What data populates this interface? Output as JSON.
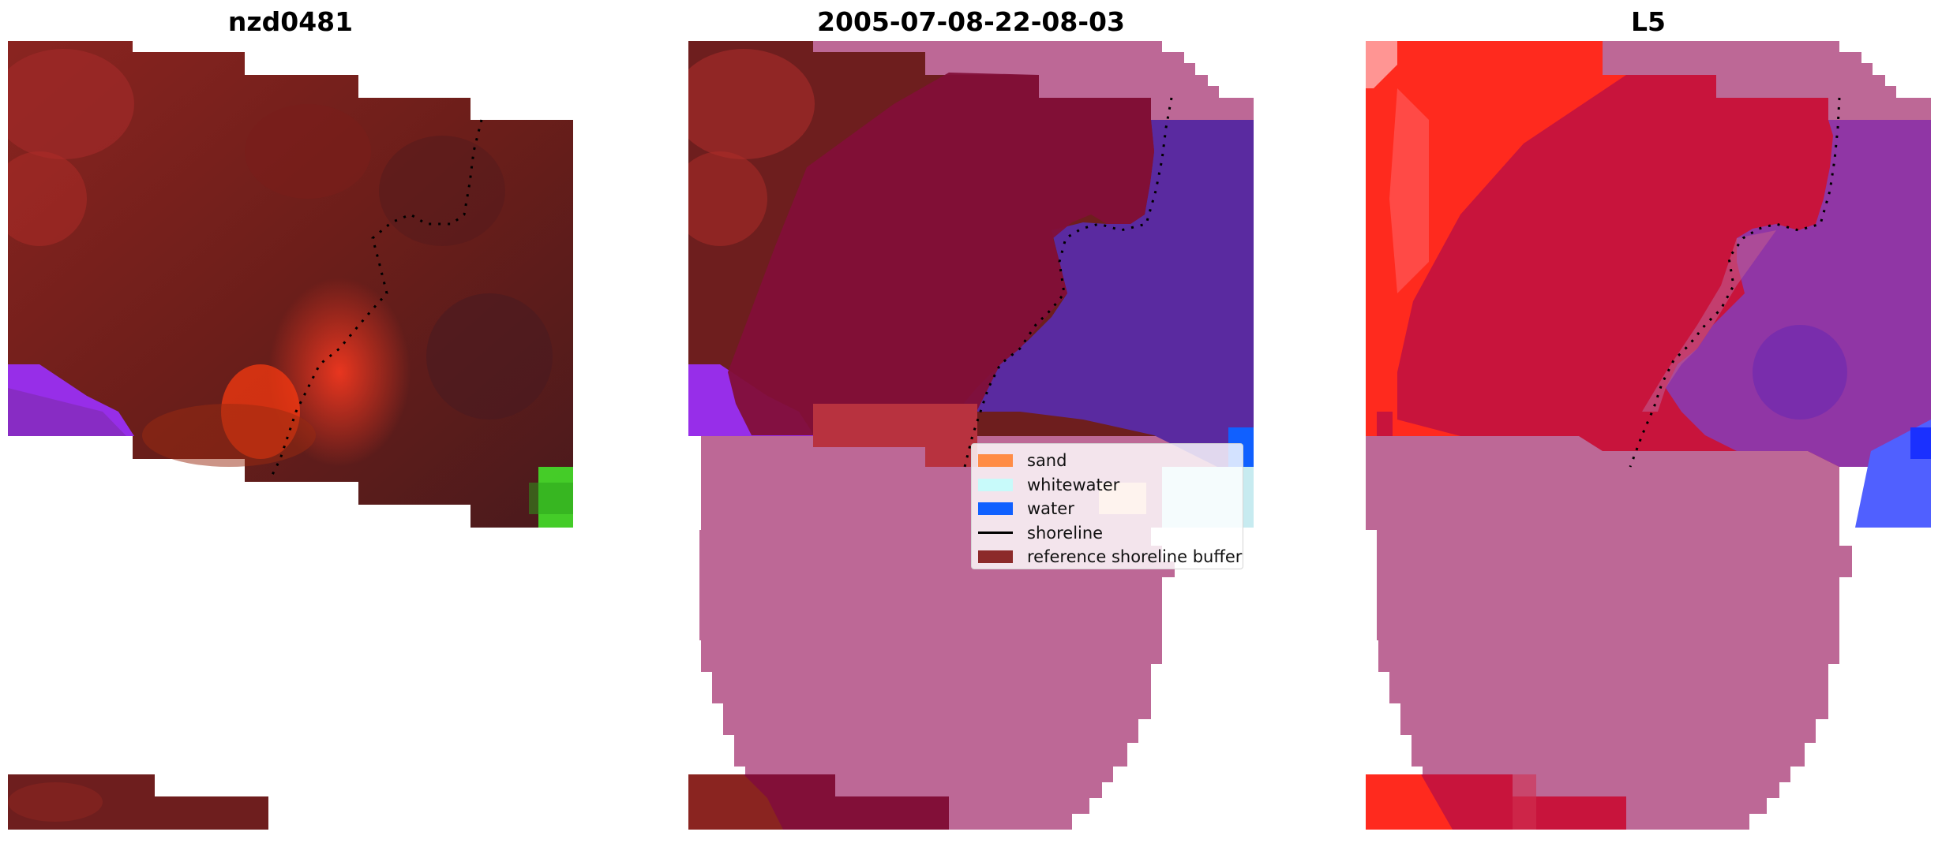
{
  "panels": [
    {
      "title": "nzd0481"
    },
    {
      "title": "2005-07-08-22-08-03"
    },
    {
      "title": "L5"
    }
  ],
  "legend": {
    "items": [
      {
        "label": "sand",
        "color": "#ff8c45",
        "kind": "patch"
      },
      {
        "label": "whitewater",
        "color": "#c8fafa",
        "kind": "patch"
      },
      {
        "label": "water",
        "color": "#1060ff",
        "kind": "patch"
      },
      {
        "label": "shoreline",
        "color": "#000000",
        "kind": "line"
      },
      {
        "label": "reference shoreline buffer",
        "color": "#8c2a2a",
        "kind": "patch"
      }
    ]
  },
  "colors": {
    "land_dark": "#6e1e1e",
    "land_red": "#ff2a1e",
    "water_purple": "#5a2aa0",
    "buffer_overlay": "#c7a0ad",
    "mask_pink": "#bd6896",
    "classified_land": "#c8143c",
    "violet_water": "#9b30ff",
    "green_patch": "#44e02a"
  }
}
